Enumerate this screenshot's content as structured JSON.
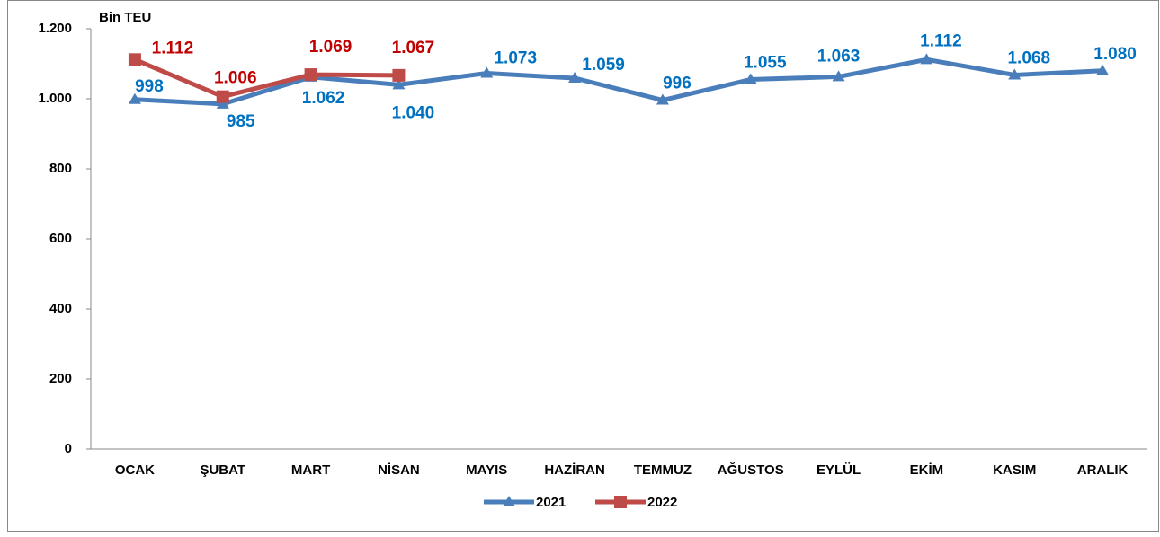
{
  "chart_data": {
    "type": "line",
    "y_label": "Bin TEU",
    "categories": [
      "OCAK",
      "ŞUBAT",
      "MART",
      "NİSAN",
      "MAYIS",
      "HAZİRAN",
      "TEMMUZ",
      "AĞUSTOS",
      "EYLÜL",
      "EKİM",
      "KASIM",
      "ARALIK"
    ],
    "series": [
      {
        "name": "2021",
        "color": "#4a7ebb",
        "label_color": "#0070c0",
        "marker": "triangle",
        "values": [
          998,
          985,
          1062,
          1040,
          1073,
          1059,
          996,
          1055,
          1063,
          1112,
          1068,
          1080
        ],
        "value_labels": [
          "998",
          "985",
          "1.062",
          "1.040",
          "1.073",
          "1.059",
          "996",
          "1.055",
          "1.063",
          "1.112",
          "1.068",
          "1.080"
        ]
      },
      {
        "name": "2022",
        "color": "#be4b48",
        "label_color": "#c00000",
        "marker": "square",
        "values": [
          1112,
          1006,
          1069,
          1067,
          null,
          null,
          null,
          null,
          null,
          null,
          null,
          null
        ],
        "value_labels": [
          "1.112",
          "1.006",
          "1.069",
          "1.067",
          null,
          null,
          null,
          null,
          null,
          null,
          null,
          null
        ]
      }
    ],
    "ylim": [
      0,
      1200
    ],
    "yticks": [
      0,
      200,
      400,
      600,
      800,
      {
        "value": 1000,
        "label": "1.000"
      },
      {
        "value": 1200,
        "label": "1.200"
      }
    ],
    "legend": "bottom"
  }
}
